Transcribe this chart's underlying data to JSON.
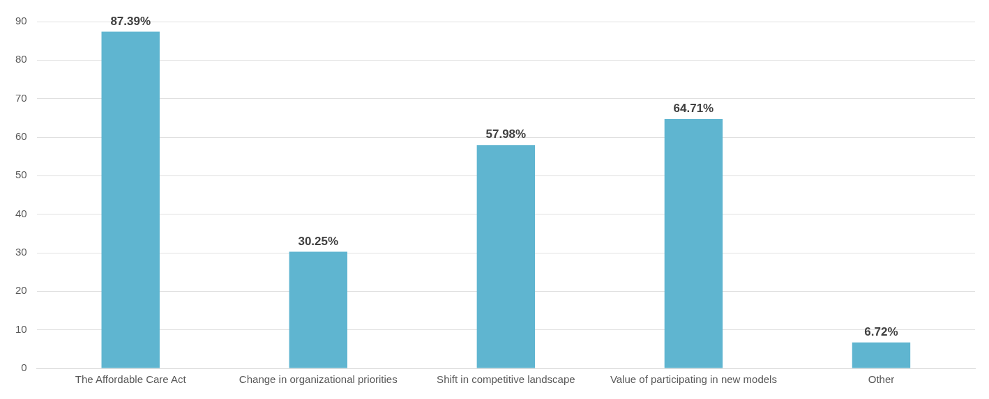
{
  "chart_data": {
    "type": "bar",
    "categories": [
      "The Affordable Care Act",
      "Change in organizational priorities",
      "Shift in competitive landscape",
      "Value of participating in new models",
      "Other"
    ],
    "values": [
      87.39,
      30.25,
      57.98,
      64.71,
      6.72
    ],
    "value_labels": [
      "87.39%",
      "30.25%",
      "57.98%",
      "64.71%",
      "6.72%"
    ],
    "color": "#5fb5d0",
    "ylim": [
      0,
      90
    ],
    "yticks": [
      0,
      10,
      20,
      30,
      40,
      50,
      60,
      70,
      80,
      90
    ],
    "grid": "y",
    "legend": false
  }
}
